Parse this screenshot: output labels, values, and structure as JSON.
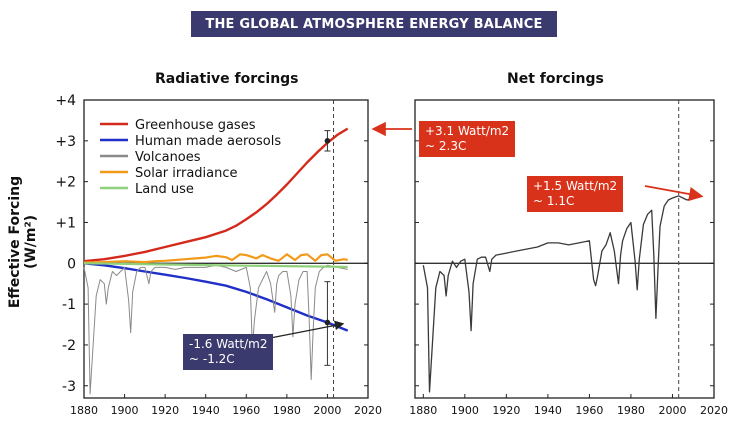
{
  "page_title": "THE GLOBAL ATMOSPHERE ENERGY BALANCE",
  "y_axis_label": "Effective Forcing (W/m²)",
  "colors": {
    "greenhouse": "#d42a1c",
    "aerosols": "#1f2fc8",
    "volcanoes": "#8a8a8a",
    "solar": "#f29a1a",
    "landuse": "#8fd17a",
    "net": "#3a3a3a",
    "callout_red": "#d9321a",
    "callout_navy": "#3b3a6e"
  },
  "chart_data": [
    {
      "id": "radiative",
      "type": "line",
      "title": "Radiative forcings",
      "xlim": [
        1880,
        2020
      ],
      "ylim": [
        -3.3,
        4
      ],
      "x_ticks": [
        1880,
        1900,
        1920,
        1940,
        1960,
        1980,
        2000,
        2020
      ],
      "y_ticks": [
        4,
        3,
        2,
        1,
        0,
        -1,
        -2,
        -3
      ],
      "y_tick_labels": [
        "+4",
        "+3",
        "+2",
        "+1",
        "0",
        "-1",
        "-2",
        "-3"
      ],
      "reference_year": 2003,
      "series": [
        {
          "name": "Greenhouse gases",
          "key": "greenhouse",
          "x": [
            1880,
            1890,
            1900,
            1910,
            1920,
            1930,
            1940,
            1950,
            1955,
            1960,
            1965,
            1970,
            1975,
            1980,
            1985,
            1990,
            1995,
            2000,
            2005,
            2010
          ],
          "y": [
            0.05,
            0.1,
            0.18,
            0.28,
            0.4,
            0.52,
            0.64,
            0.8,
            0.92,
            1.08,
            1.25,
            1.45,
            1.68,
            1.93,
            2.2,
            2.47,
            2.72,
            2.95,
            3.15,
            3.3
          ]
        },
        {
          "name": "Human made aerosols",
          "key": "aerosols",
          "x": [
            1880,
            1890,
            1900,
            1910,
            1920,
            1930,
            1940,
            1950,
            1960,
            1970,
            1980,
            1990,
            2000,
            2010
          ],
          "y": [
            0.0,
            -0.05,
            -0.12,
            -0.2,
            -0.28,
            -0.36,
            -0.45,
            -0.55,
            -0.7,
            -0.88,
            -1.08,
            -1.28,
            -1.45,
            -1.65
          ]
        },
        {
          "name": "Volcanoes",
          "key": "volcanoes",
          "x": [
            1880,
            1882,
            1883,
            1884,
            1886,
            1888,
            1890,
            1891,
            1892,
            1894,
            1896,
            1898,
            1900,
            1902,
            1903,
            1904,
            1906,
            1908,
            1910,
            1912,
            1913,
            1915,
            1920,
            1925,
            1930,
            1935,
            1940,
            1945,
            1950,
            1955,
            1960,
            1962,
            1963,
            1964,
            1966,
            1968,
            1970,
            1972,
            1974,
            1975,
            1976,
            1978,
            1980,
            1982,
            1983,
            1984,
            1986,
            1988,
            1990,
            1991,
            1992,
            1993,
            1994,
            1996,
            1998,
            2000,
            2005,
            2010
          ],
          "y": [
            -0.1,
            -0.6,
            -3.2,
            -2.4,
            -0.8,
            -0.4,
            -0.5,
            -1.0,
            -0.6,
            -0.2,
            -0.3,
            -0.2,
            -0.1,
            -0.9,
            -1.7,
            -0.7,
            -0.2,
            -0.1,
            -0.1,
            -0.5,
            -0.2,
            -0.1,
            -0.1,
            -0.15,
            -0.1,
            -0.1,
            -0.1,
            -0.05,
            -0.1,
            -0.2,
            -0.1,
            -0.6,
            -2.1,
            -1.4,
            -0.6,
            -0.4,
            -0.2,
            -0.5,
            -1.2,
            -0.5,
            -0.3,
            -0.2,
            -0.2,
            -0.8,
            -1.8,
            -1.0,
            -0.4,
            -0.2,
            -0.2,
            -1.4,
            -2.85,
            -1.6,
            -0.6,
            -0.2,
            -0.1,
            -0.05,
            -0.1,
            -0.15
          ]
        },
        {
          "name": "Solar irradiance",
          "key": "solar",
          "x": [
            1880,
            1890,
            1900,
            1910,
            1915,
            1920,
            1925,
            1930,
            1935,
            1940,
            1945,
            1950,
            1953,
            1957,
            1960,
            1965,
            1968,
            1972,
            1976,
            1980,
            1984,
            1987,
            1990,
            1994,
            1997,
            2000,
            2004,
            2008,
            2010
          ],
          "y": [
            0.02,
            0.03,
            0.05,
            0.03,
            0.05,
            0.06,
            0.08,
            0.1,
            0.12,
            0.14,
            0.18,
            0.15,
            0.08,
            0.22,
            0.2,
            0.12,
            0.2,
            0.12,
            0.06,
            0.22,
            0.08,
            0.2,
            0.22,
            0.06,
            0.2,
            0.22,
            0.06,
            0.1,
            0.08
          ]
        },
        {
          "name": "Land use",
          "key": "landuse",
          "x": [
            1880,
            1920,
            1960,
            2000,
            2010
          ],
          "y": [
            0.0,
            -0.03,
            -0.06,
            -0.08,
            -0.09
          ]
        }
      ],
      "error_bars": [
        {
          "x": 2000,
          "y": 3.0,
          "low": 2.75,
          "high": 3.25
        },
        {
          "x": 2000,
          "y": -1.45,
          "low": -2.5,
          "high": -0.45
        }
      ]
    },
    {
      "id": "net",
      "type": "line",
      "title": "Net forcings",
      "xlim": [
        1876,
        2020
      ],
      "ylim": [
        -3.3,
        4
      ],
      "x_ticks": [
        1880,
        1900,
        1920,
        1940,
        1960,
        1980,
        2000,
        2020
      ],
      "y_ticks": [
        4,
        3,
        2,
        1,
        0,
        -1,
        -2,
        -3
      ],
      "reference_year": 2003,
      "series": [
        {
          "name": "Net forcing",
          "key": "net",
          "x": [
            1880,
            1882,
            1883,
            1884,
            1886,
            1888,
            1890,
            1891,
            1892,
            1894,
            1896,
            1898,
            1900,
            1902,
            1903,
            1904,
            1906,
            1908,
            1910,
            1912,
            1913,
            1915,
            1920,
            1925,
            1930,
            1935,
            1940,
            1945,
            1950,
            1955,
            1960,
            1962,
            1963,
            1964,
            1966,
            1968,
            1970,
            1972,
            1974,
            1975,
            1976,
            1978,
            1980,
            1982,
            1983,
            1984,
            1986,
            1988,
            1990,
            1991,
            1992,
            1993,
            1994,
            1996,
            1998,
            2000,
            2003,
            2005,
            2007,
            2010
          ],
          "y": [
            -0.05,
            -0.6,
            -3.15,
            -2.3,
            -0.6,
            -0.2,
            -0.3,
            -0.8,
            -0.3,
            0.05,
            -0.1,
            0.05,
            0.1,
            -0.7,
            -1.65,
            -0.5,
            0.1,
            0.15,
            0.15,
            -0.2,
            0.1,
            0.2,
            0.25,
            0.3,
            0.35,
            0.4,
            0.5,
            0.5,
            0.45,
            0.5,
            0.55,
            -0.4,
            -0.55,
            -0.3,
            0.3,
            0.45,
            0.75,
            0.3,
            -0.5,
            0.2,
            0.55,
            0.85,
            1.0,
            0.05,
            -0.65,
            0.1,
            0.95,
            1.2,
            1.3,
            0.2,
            -1.35,
            -0.2,
            0.9,
            1.4,
            1.55,
            1.6,
            1.65,
            1.6,
            1.55,
            1.6
          ]
        }
      ]
    }
  ],
  "legend": [
    {
      "label": "Greenhouse gases",
      "key": "greenhouse"
    },
    {
      "label": "Human made aerosols",
      "key": "aerosols"
    },
    {
      "label": "Volcanoes",
      "key": "volcanoes"
    },
    {
      "label": "Solar irradiance",
      "key": "solar"
    },
    {
      "label": "Land use",
      "key": "landuse"
    }
  ],
  "callouts": {
    "ghg": {
      "line1": "+3.1 Watt/m2",
      "line2": "~ 2.3C"
    },
    "aerosol": {
      "line1": "-1.6 Watt/m2",
      "line2": "~ -1.2C"
    },
    "net": {
      "line1": "+1.5 Watt/m2",
      "line2": "~ 1.1C"
    }
  }
}
